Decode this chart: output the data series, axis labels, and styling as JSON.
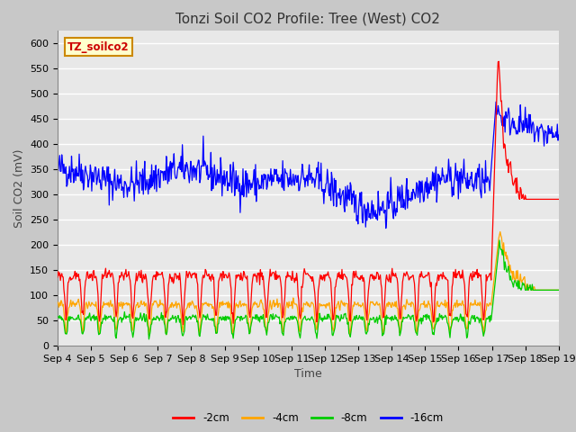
{
  "title": "Tonzi Soil CO2 Profile: Tree (West) CO2",
  "ylabel": "Soil CO2 (mV)",
  "xlabel": "Time",
  "label_box_text": "TZ_soilco2",
  "ylim": [
    0,
    625
  ],
  "yticks": [
    0,
    50,
    100,
    150,
    200,
    250,
    300,
    350,
    400,
    450,
    500,
    550,
    600
  ],
  "colors": {
    "2cm": "#ff0000",
    "4cm": "#ffa500",
    "8cm": "#00cc00",
    "16cm": "#0000ff"
  },
  "legend_labels": [
    "-2cm",
    "-4cm",
    "-8cm",
    "-16cm"
  ],
  "plot_bg_color": "#e8e8e8",
  "fig_bg_color": "#c8c8c8",
  "grid_color": "#ffffff",
  "n_days": 15,
  "spike_day": 13,
  "title_fontsize": 11,
  "axis_label_fontsize": 9,
  "tick_fontsize": 8
}
